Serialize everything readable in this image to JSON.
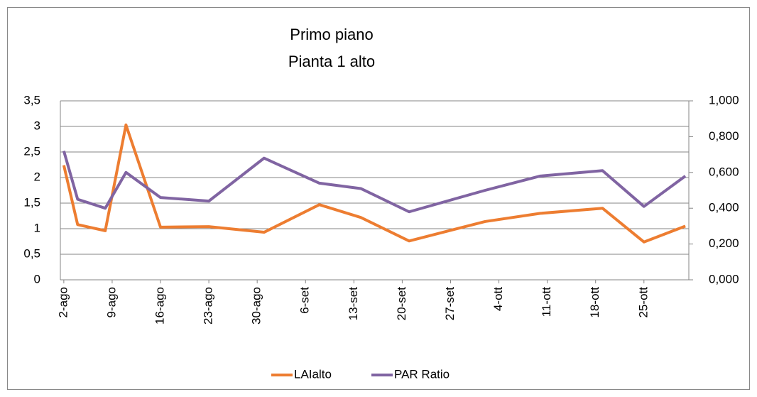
{
  "chart_data": {
    "type": "line",
    "title": [
      "Primo piano",
      "Pianta 1 alto"
    ],
    "x": [
      "2-ago",
      "4-ago",
      "8-ago",
      "11-ago",
      "16-ago",
      "23-ago",
      "31-ago",
      "8-set",
      "14-set",
      "21-set",
      "2-ott",
      "10-ott",
      "19-ott",
      "25-ott",
      "31-ott"
    ],
    "xlim": [
      "2-ago",
      "31-ott"
    ],
    "xticks": [
      "2-ago",
      "9-ago",
      "16-ago",
      "23-ago",
      "30-ago",
      "6-set",
      "13-set",
      "20-set",
      "27-set",
      "4-ott",
      "11-ott",
      "18-ott",
      "25-ott"
    ],
    "series": [
      {
        "name": "LAIalto",
        "color": "#ed7d31",
        "values": [
          2.24,
          1.08,
          0.96,
          3.03,
          1.03,
          1.04,
          0.93,
          1.47,
          1.22,
          0.76,
          1.14,
          1.3,
          1.4,
          0.74,
          1.05
        ]
      },
      {
        "name": "PAR Ratio",
        "color": "#8064a2",
        "axis": "y2",
        "values": [
          0.72,
          0.45,
          0.4,
          0.6,
          0.46,
          0.44,
          0.68,
          0.54,
          0.51,
          0.38,
          0.5,
          0.58,
          0.61,
          0.41,
          0.58
        ]
      }
    ],
    "ylim": [
      0,
      3.5
    ],
    "yticks": [
      0,
      {
        "value": 0.5,
        "label": "0,5"
      },
      1,
      {
        "value": 1.5,
        "label": "1,5"
      },
      2,
      {
        "value": 2.5,
        "label": "2,5"
      },
      3,
      {
        "value": 3.5,
        "label": "3,5"
      }
    ],
    "y2lim": [
      0,
      1
    ],
    "y2ticks": [
      {
        "value": 0,
        "label": "0,000"
      },
      {
        "value": 0.2,
        "label": "0,200"
      },
      {
        "value": 0.4,
        "label": "0,400"
      },
      {
        "value": 0.6,
        "label": "0,600"
      },
      {
        "value": 0.8,
        "label": "0,800"
      },
      {
        "value": 1,
        "label": "1,000"
      }
    ],
    "grid": true,
    "legend": "bottom"
  }
}
